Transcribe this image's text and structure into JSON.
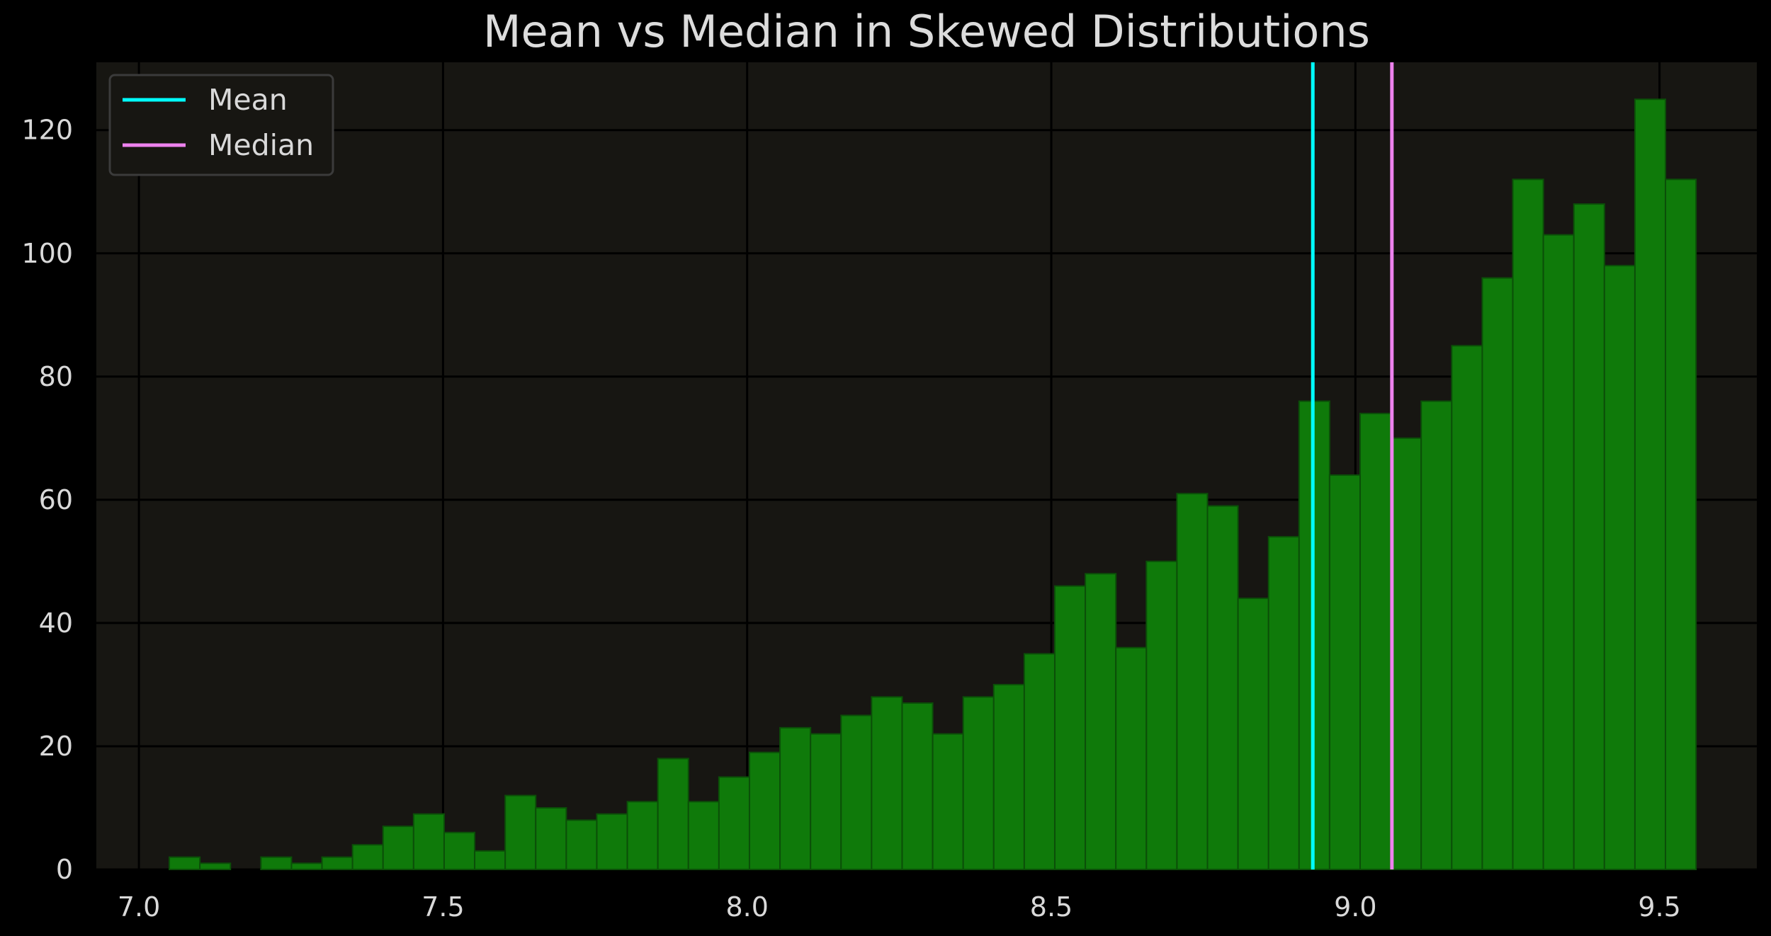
{
  "chart_data": {
    "type": "bar",
    "title": "Mean vs Median in Skewed Distributions",
    "xlabel": "",
    "ylabel": "",
    "xlim": [
      6.93,
      9.66
    ],
    "ylim": [
      0,
      131
    ],
    "grid": true,
    "legend_placement": "top-left",
    "bin_start": 7.05,
    "bin_width": 0.0502,
    "values": [
      2,
      1,
      0,
      2,
      1,
      2,
      4,
      7,
      9,
      6,
      3,
      12,
      10,
      8,
      9,
      11,
      18,
      11,
      15,
      19,
      23,
      22,
      25,
      28,
      27,
      22,
      28,
      30,
      35,
      46,
      48,
      36,
      50,
      61,
      59,
      44,
      54,
      76,
      64,
      74,
      70,
      76,
      85,
      96,
      112,
      103,
      108,
      98,
      125,
      112
    ],
    "x_ticks": [
      7.0,
      7.5,
      8.0,
      8.5,
      9.0,
      9.5
    ],
    "x_tick_labels": [
      "7.0",
      "7.5",
      "8.0",
      "8.5",
      "9.0",
      "9.5"
    ],
    "y_ticks": [
      0,
      20,
      40,
      60,
      80,
      100,
      120
    ],
    "y_tick_labels": [
      "0",
      "20",
      "40",
      "60",
      "80",
      "100",
      "120"
    ],
    "vlines": [
      {
        "name": "Mean",
        "x": 8.93,
        "color": "#00ffff"
      },
      {
        "name": "Median",
        "x": 9.06,
        "color": "#ee82ee"
      }
    ],
    "colors": {
      "bar_fill": "#0f7a0a",
      "bar_edge": "#0b4f08",
      "plot_bg": "#171612",
      "figure_bg": "#000000",
      "grid": "#000000",
      "text": "#d9d9d9"
    }
  }
}
